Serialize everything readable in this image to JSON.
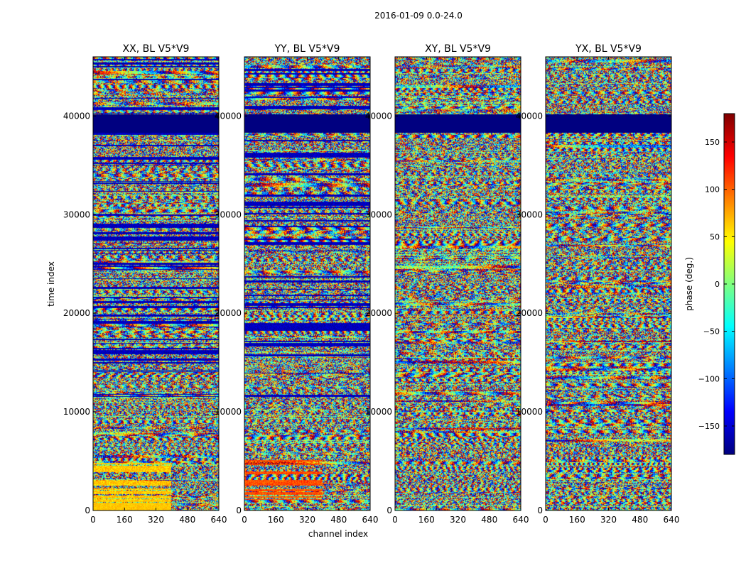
{
  "figure": {
    "suptitle": "2016-01-09 0.0-24.0"
  },
  "chart_data": {
    "type": "heatmap",
    "colormap": "jet",
    "x_label": "channel index",
    "y_label": "time index",
    "x_range": [
      0,
      640
    ],
    "y_range": [
      0,
      46000
    ],
    "x_ticks": [
      0,
      160,
      320,
      480,
      640
    ],
    "y_ticks": [
      0,
      10000,
      20000,
      30000,
      40000
    ],
    "colorbar": {
      "label": "phase (deg.)",
      "range": [
        -180,
        180
      ],
      "ticks": [
        150,
        100,
        50,
        0,
        -50,
        -100,
        -150
      ],
      "tick_labels": [
        "150",
        "100",
        "50",
        "0",
        "−50",
        "−100",
        "−150"
      ]
    },
    "panels": [
      {
        "title": "XX, BL V5*V9",
        "polarization": "XX"
      },
      {
        "title": "YY, BL V5*V9",
        "polarization": "YY"
      },
      {
        "title": "XY, BL V5*V9",
        "polarization": "XY"
      },
      {
        "title": "YX, BL V5*V9",
        "polarization": "YX"
      }
    ],
    "flagged_time_ranges": [
      [
        38300,
        40200
      ]
    ],
    "band_boundaries_time": [
      1000,
      5200,
      11200,
      27600,
      38300,
      40200
    ]
  }
}
